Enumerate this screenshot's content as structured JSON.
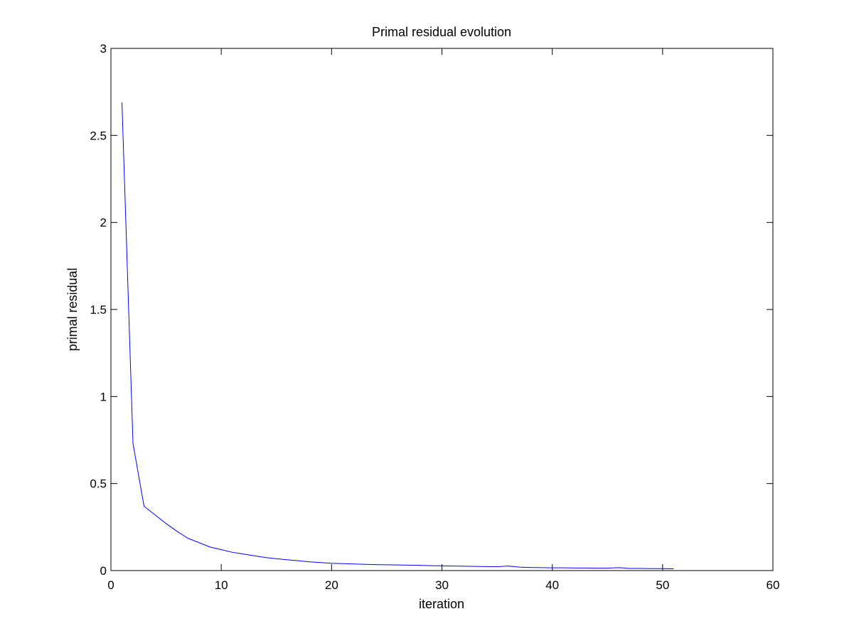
{
  "chart_data": {
    "type": "line",
    "title": "Primal residual evolution",
    "xlabel": "iteration",
    "ylabel": "primal residual",
    "xlim": [
      0,
      60
    ],
    "ylim": [
      0,
      3
    ],
    "xticks": [
      0,
      10,
      20,
      30,
      40,
      50,
      60
    ],
    "yticks": [
      0,
      0.5,
      1,
      1.5,
      2,
      2.5,
      3
    ],
    "xtick_labels": [
      "0",
      "10",
      "20",
      "30",
      "40",
      "50",
      "60"
    ],
    "ytick_labels": [
      "0",
      "0.5",
      "1",
      "1.5",
      "2",
      "2.5",
      "3"
    ],
    "grid": false,
    "legend": "none",
    "colors": {
      "line": "#0000ff",
      "axes": "#000000",
      "background": "#ffffff"
    },
    "series": [
      {
        "x": [
          1,
          2,
          3,
          4,
          5,
          6,
          7,
          8,
          9,
          10,
          11,
          12,
          13,
          14,
          15,
          16,
          17,
          18,
          19,
          20,
          21,
          22,
          23,
          24,
          25,
          26,
          27,
          28,
          29,
          30,
          31,
          32,
          33,
          34,
          35,
          36,
          37,
          38,
          39,
          40,
          41,
          42,
          43,
          44,
          45,
          46,
          47,
          48,
          49,
          50,
          51
        ],
        "values": [
          2.69,
          0.73,
          0.37,
          0.32,
          0.27,
          0.225,
          0.185,
          0.16,
          0.135,
          0.12,
          0.105,
          0.095,
          0.085,
          0.075,
          0.068,
          0.062,
          0.056,
          0.05,
          0.046,
          0.042,
          0.04,
          0.038,
          0.036,
          0.034,
          0.033,
          0.032,
          0.031,
          0.03,
          0.028,
          0.027,
          0.026,
          0.025,
          0.024,
          0.023,
          0.022,
          0.026,
          0.02,
          0.018,
          0.017,
          0.016,
          0.016,
          0.015,
          0.015,
          0.014,
          0.014,
          0.017,
          0.012,
          0.012,
          0.011,
          0.011,
          0.01
        ]
      }
    ]
  }
}
